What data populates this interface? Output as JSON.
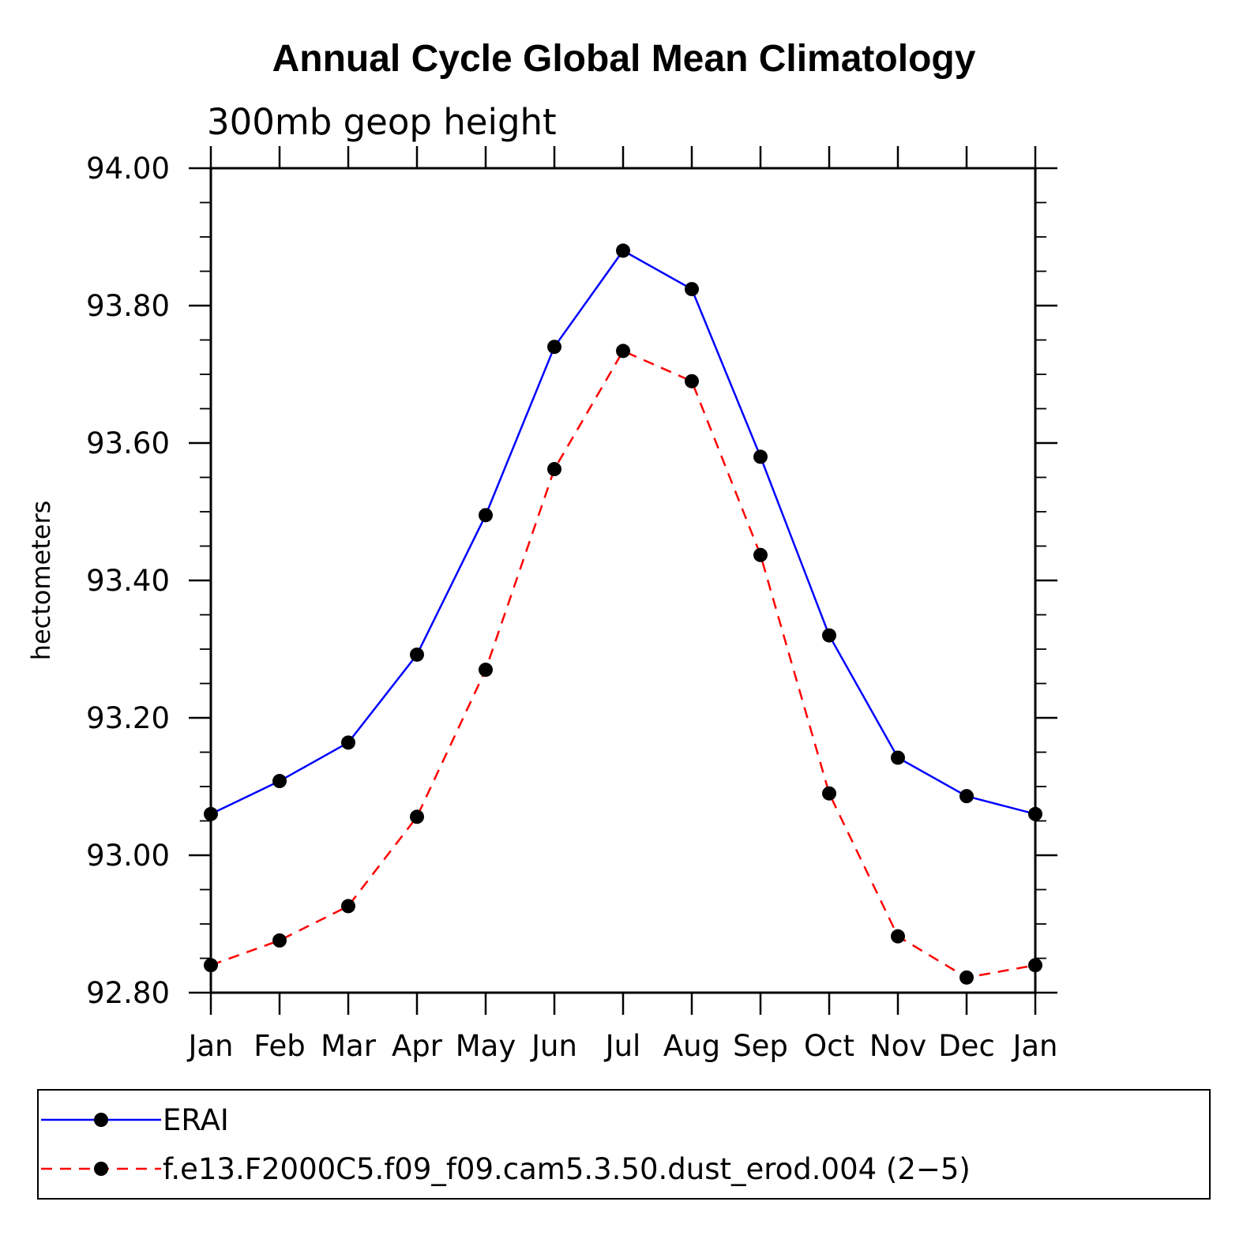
{
  "chart_data": {
    "type": "line",
    "title": "Annual Cycle Global Mean Climatology",
    "subtitle": "300mb geop height",
    "xlabel": "",
    "ylabel": "hectometers",
    "categories": [
      "Jan",
      "Feb",
      "Mar",
      "Apr",
      "May",
      "Jun",
      "Jul",
      "Aug",
      "Sep",
      "Oct",
      "Nov",
      "Dec",
      "Jan"
    ],
    "ylim": [
      92.8,
      94.0
    ],
    "yticks": [
      "92.80",
      "93.00",
      "93.20",
      "93.40",
      "93.60",
      "93.80",
      "94.00"
    ],
    "grid": false,
    "legend_position": "bottom",
    "series": [
      {
        "name": "ERAI",
        "color": "#0000ff",
        "style": "solid",
        "marker": "filled-circle",
        "values": [
          93.06,
          93.108,
          93.164,
          93.292,
          93.495,
          93.74,
          93.88,
          93.824,
          93.58,
          93.32,
          93.142,
          93.086,
          93.06
        ]
      },
      {
        "name": "f.e13.F2000C5.f09_f09.cam5.3.50.dust_erod.004 (2−5)",
        "color": "#ff0000",
        "style": "dashed",
        "marker": "filled-circle",
        "values": [
          92.84,
          92.876,
          92.926,
          93.056,
          93.27,
          93.562,
          93.734,
          93.69,
          93.437,
          93.09,
          92.882,
          92.822,
          92.84
        ]
      }
    ]
  }
}
